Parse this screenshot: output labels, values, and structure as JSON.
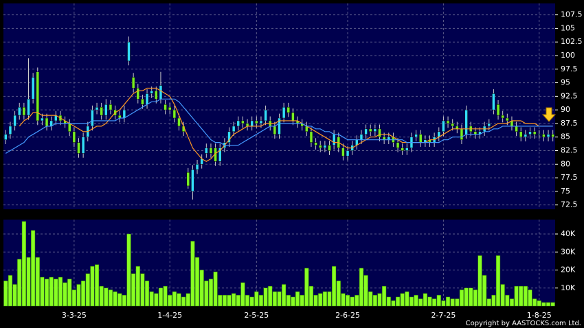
{
  "chart_data": [
    {
      "type": "candlestick",
      "up_color": "#33ddff",
      "down_color": "#77ee22",
      "open": [
        84.5,
        85.5,
        87,
        89,
        90.5,
        89,
        92,
        97,
        88,
        88.5,
        87,
        88,
        89,
        88,
        87.5,
        86,
        84,
        82,
        85,
        87,
        90,
        90.5,
        89,
        91,
        90,
        89,
        88.5,
        99,
        96,
        94,
        92,
        91,
        93,
        93.5,
        92,
        91,
        90.5,
        90,
        88.5,
        87,
        78.5,
        75,
        79,
        80,
        82,
        83,
        83,
        80.5,
        83,
        84,
        86,
        87,
        88,
        87.5,
        87,
        88,
        87.5,
        88,
        88,
        87,
        85.5,
        88.5,
        90.5,
        89.5,
        88,
        87.5,
        87,
        86,
        84,
        83.5,
        83,
        83.5,
        83.5,
        85,
        83,
        81.5,
        82.5,
        83.5,
        84.5,
        85.5,
        86.5,
        86,
        86.5,
        85,
        84.5,
        85,
        84,
        83,
        82.5,
        83,
        85,
        85.5,
        84,
        84.5,
        84,
        85,
        86,
        88,
        87.5,
        87,
        86.5,
        85.5,
        87,
        86,
        85.5,
        86,
        87,
        90,
        91,
        89,
        88.5,
        88,
        87,
        86,
        85,
        85.5,
        86,
        85.5,
        85.5,
        85,
        85.5
      ],
      "high": [
        86.3,
        87.8,
        89.8,
        91.3,
        91.3,
        99.5,
        96.8,
        97.8,
        89.3,
        89.3,
        88.8,
        89.8,
        89.8,
        88.8,
        88.3,
        86.8,
        84.8,
        85.8,
        87.8,
        90.8,
        91.3,
        91.3,
        92,
        91.8,
        90.8,
        89.8,
        90.8,
        103.5,
        96.8,
        94.8,
        92.8,
        93.8,
        94.3,
        94.3,
        97,
        91.8,
        91.3,
        90.8,
        89.3,
        87.8,
        79.3,
        79.8,
        80.8,
        81.8,
        83.8,
        83.8,
        83.8,
        83.8,
        84.8,
        86.8,
        87.8,
        88.8,
        88.8,
        88.3,
        88.8,
        88.8,
        88.8,
        90.8,
        88.8,
        87.8,
        89.3,
        91.3,
        91.3,
        90.3,
        88.8,
        88.3,
        87.8,
        86.8,
        84.8,
        84.3,
        84.3,
        84.3,
        86.3,
        85.8,
        83.8,
        83.3,
        84.3,
        85.3,
        86.3,
        87.3,
        87.3,
        87.3,
        87.3,
        85.8,
        85.8,
        85.8,
        84.8,
        83.8,
        83.8,
        85.8,
        86.3,
        86.3,
        85.3,
        85.3,
        85.8,
        86.8,
        88.8,
        88.8,
        88.3,
        87.8,
        87.3,
        90.8,
        87.8,
        86.8,
        86.8,
        87.8,
        88.3,
        93.8,
        91.8,
        89.8,
        89.3,
        88.8,
        87.8,
        86.8,
        86.3,
        86.8,
        86.8,
        86.3,
        86.3,
        86.3,
        86.3
      ],
      "low": [
        83.7,
        84.7,
        86.2,
        88.2,
        88.2,
        88.2,
        91.2,
        87.2,
        87.2,
        86.2,
        86.2,
        87.2,
        87.2,
        86.7,
        85.2,
        83.2,
        81.2,
        81.2,
        84.2,
        86.2,
        89.2,
        88.2,
        88.2,
        89.2,
        88.2,
        87.7,
        87.7,
        98.2,
        93.2,
        91.2,
        90.2,
        90.2,
        92.2,
        91.2,
        91.2,
        89.2,
        89.2,
        87.7,
        86.2,
        85.2,
        75.5,
        73.5,
        78.2,
        79.2,
        81.2,
        81.2,
        79.7,
        79.7,
        82.2,
        83.2,
        85.2,
        86.2,
        86.7,
        86.2,
        86.2,
        86.7,
        86.7,
        87.2,
        86.2,
        84.7,
        84.7,
        87.7,
        88.7,
        87.2,
        86.7,
        86.2,
        85.2,
        83.2,
        82.7,
        82.2,
        82.2,
        81.7,
        82.7,
        82.2,
        80.7,
        80.7,
        81.7,
        82.7,
        83.7,
        84.7,
        85.2,
        85.2,
        84.2,
        83.7,
        83.7,
        83.2,
        82.2,
        81.7,
        81.7,
        82.2,
        84.2,
        83.2,
        83.2,
        83.2,
        83.2,
        84.2,
        85.2,
        86.7,
        86.2,
        85.7,
        83.7,
        84.7,
        85.2,
        84.7,
        84.7,
        85.2,
        86.2,
        89.2,
        88.2,
        87.7,
        87.2,
        86.2,
        85.2,
        84.2,
        84.2,
        84.7,
        84.7,
        84.7,
        84.2,
        84.2,
        84.2
      ],
      "close": [
        85.5,
        87,
        89,
        90.5,
        89,
        92,
        96,
        88,
        88.5,
        87,
        88,
        89,
        88,
        87.5,
        86,
        84,
        82,
        85,
        87,
        90,
        90.5,
        89,
        91,
        90,
        89,
        88.5,
        90,
        102.5,
        94,
        92,
        91,
        93,
        93.5,
        92,
        94.5,
        90,
        90,
        88.5,
        87,
        86,
        76,
        79,
        80,
        81,
        83,
        82,
        80.5,
        83,
        84,
        86,
        87,
        88,
        87.5,
        87,
        88,
        87.5,
        88,
        90,
        87,
        85.5,
        88.5,
        90.5,
        89.5,
        88,
        87.5,
        87,
        86,
        84,
        83.5,
        83,
        83.5,
        82.5,
        85.5,
        83,
        81.5,
        82.5,
        83.5,
        84.5,
        85.5,
        86.5,
        86,
        86.5,
        85,
        84.5,
        85,
        84,
        83,
        82.5,
        83,
        85,
        85.5,
        84,
        84.5,
        84,
        85,
        86,
        88,
        87.5,
        87,
        86.5,
        84.5,
        90,
        86,
        85.5,
        86,
        87,
        87.5,
        93,
        89,
        88.5,
        88,
        87,
        86,
        85,
        85.5,
        86,
        85.5,
        85.5,
        85,
        85.5,
        85
      ],
      "series": [
        {
          "color": "#ff9922",
          "values": [
            null,
            null,
            null,
            87,
            88,
            88.5,
            89.5,
            89.5,
            89,
            89,
            89,
            89,
            88.5,
            88,
            87.5,
            87,
            86.5,
            86,
            86,
            86.5,
            87,
            87,
            87.5,
            88.5,
            89.5,
            90,
            91,
            92,
            93,
            93.5,
            93.5,
            94,
            94,
            94,
            93.5,
            93,
            92.5,
            91,
            89,
            87,
            85,
            83,
            82,
            81,
            80.5,
            81,
            82,
            82.5,
            83.5,
            84.5,
            85.5,
            86,
            86.5,
            87,
            87,
            87,
            87,
            87.5,
            87.5,
            87.5,
            88,
            88,
            88,
            88,
            88,
            87.5,
            87,
            86.5,
            86,
            85.5,
            85,
            84.5,
            84,
            84,
            83.5,
            83,
            83,
            83.5,
            84,
            84.5,
            85,
            85,
            85.5,
            85.5,
            85.5,
            85,
            84.5,
            84,
            84,
            84,
            84,
            84,
            84,
            84.5,
            84.5,
            85,
            85.5,
            86,
            86.5,
            86.5,
            86.5,
            86.5,
            86.5,
            86.5,
            86.5,
            86.5,
            86.5,
            87,
            87.5,
            87.5,
            87.5,
            88,
            88,
            88,
            87.5,
            87.5,
            87.5,
            87,
            87,
            87,
            87
          ]
        },
        {
          "color": "#4499ff",
          "values": [
            82,
            82.5,
            83,
            83.5,
            84,
            85,
            85.5,
            86,
            86.5,
            87,
            87,
            87.5,
            87.5,
            87.5,
            87.5,
            87.5,
            87.5,
            87.5,
            87.5,
            88,
            88,
            88,
            88,
            88,
            88,
            88.5,
            88.5,
            89,
            89.5,
            90,
            90.5,
            91,
            91.5,
            91.5,
            92,
            92,
            92,
            92,
            91.5,
            90.5,
            89.5,
            88.5,
            87.5,
            86.5,
            85.5,
            84.5,
            84,
            84,
            83.5,
            83.5,
            83.5,
            83.5,
            84,
            84.5,
            85,
            85.5,
            86,
            86.5,
            87,
            87,
            87.5,
            87.5,
            87.5,
            87.5,
            87.5,
            87.5,
            87,
            87,
            86.5,
            86.5,
            86,
            86,
            85.5,
            85.5,
            85,
            84.5,
            84.5,
            84.5,
            84.5,
            84.5,
            84.5,
            84.5,
            84.5,
            84.5,
            84.5,
            84.5,
            84.5,
            84.5,
            84,
            84,
            84,
            84,
            84,
            84,
            84,
            84,
            84.5,
            84.5,
            85,
            85,
            85,
            85.5,
            85.5,
            85.5,
            85.5,
            86,
            86,
            86.5,
            86.5,
            87,
            87,
            87,
            87,
            87,
            87,
            87,
            87,
            87,
            87,
            87,
            87
          ]
        }
      ],
      "xlim": [
        -0.5,
        120.5
      ],
      "ylim": [
        71.7,
        109.6
      ],
      "yticks": [
        72.5,
        75,
        77.5,
        80,
        82.5,
        85,
        87.5,
        90,
        92.5,
        95,
        97.5,
        100,
        102.5,
        105,
        107.5
      ],
      "grid": true
    },
    {
      "type": "bar",
      "color": "#88ff22",
      "values": [
        14000,
        17000,
        12000,
        26000,
        47000,
        27000,
        42000,
        27000,
        16000,
        15000,
        16000,
        15000,
        16000,
        13000,
        15000,
        9000,
        12000,
        14000,
        18000,
        22000,
        23000,
        11000,
        10000,
        9000,
        8000,
        7000,
        6000,
        40000,
        18000,
        22000,
        18000,
        14000,
        8000,
        7000,
        10000,
        11000,
        6000,
        8000,
        7000,
        5000,
        7000,
        36000,
        27000,
        20000,
        14000,
        15000,
        19000,
        6000,
        6000,
        6000,
        7000,
        6000,
        13000,
        6000,
        5000,
        8000,
        6000,
        10000,
        11000,
        8000,
        8000,
        12000,
        6000,
        5000,
        8000,
        6000,
        21000,
        11000,
        6000,
        7000,
        8000,
        8000,
        22000,
        14000,
        7000,
        6000,
        5000,
        6000,
        21000,
        17000,
        8000,
        6000,
        7000,
        11000,
        5000,
        3000,
        5000,
        7000,
        8000,
        5000,
        6000,
        4000,
        7000,
        5000,
        4000,
        6000,
        3000,
        5000,
        4000,
        4000,
        9000,
        10000,
        10000,
        9000,
        28000,
        17000,
        4000,
        6000,
        28000,
        12000,
        6000,
        4000,
        11000,
        11000,
        11000,
        9000,
        4000,
        3000,
        2000,
        2000,
        2000
      ],
      "xlim": [
        -0.5,
        120.5
      ],
      "xticks": [
        {
          "value": 15,
          "label": "3-3-25"
        },
        {
          "value": 36,
          "label": "1-4-25"
        },
        {
          "value": 55,
          "label": "2-5-25"
        },
        {
          "value": 75,
          "label": "2-6-25"
        },
        {
          "value": 96,
          "label": "2-7-25"
        },
        {
          "value": 117,
          "label": "1-8-25"
        }
      ],
      "ylim": [
        0,
        48000
      ],
      "yticks": [
        {
          "value": 10000,
          "label": "10K"
        },
        {
          "value": 20000,
          "label": "20K"
        },
        {
          "value": 30000,
          "label": "30K"
        },
        {
          "value": 40000,
          "label": "40K"
        }
      ],
      "grid": true
    }
  ],
  "copyright": "Copyright by AASTOCKS.com Ltd."
}
